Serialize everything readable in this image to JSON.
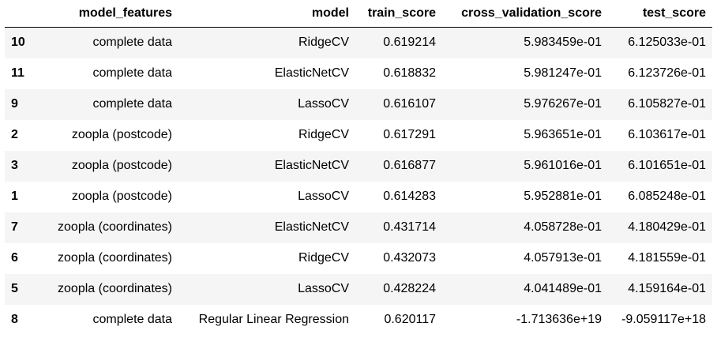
{
  "table": {
    "columns": {
      "index": "",
      "model_features": "model_features",
      "model": "model",
      "train_score": "train_score",
      "cross_validation_score": "cross_validation_score",
      "test_score": "test_score"
    },
    "rows": [
      {
        "index": "10",
        "model_features": "complete data",
        "model": "RidgeCV",
        "train_score": "0.619214",
        "cross_validation_score": "5.983459e-01",
        "test_score": "6.125033e-01"
      },
      {
        "index": "11",
        "model_features": "complete data",
        "model": "ElasticNetCV",
        "train_score": "0.618832",
        "cross_validation_score": "5.981247e-01",
        "test_score": "6.123726e-01"
      },
      {
        "index": "9",
        "model_features": "complete data",
        "model": "LassoCV",
        "train_score": "0.616107",
        "cross_validation_score": "5.976267e-01",
        "test_score": "6.105827e-01"
      },
      {
        "index": "2",
        "model_features": "zoopla (postcode)",
        "model": "RidgeCV",
        "train_score": "0.617291",
        "cross_validation_score": "5.963651e-01",
        "test_score": "6.103617e-01"
      },
      {
        "index": "3",
        "model_features": "zoopla (postcode)",
        "model": "ElasticNetCV",
        "train_score": "0.616877",
        "cross_validation_score": "5.961016e-01",
        "test_score": "6.101651e-01"
      },
      {
        "index": "1",
        "model_features": "zoopla (postcode)",
        "model": "LassoCV",
        "train_score": "0.614283",
        "cross_validation_score": "5.952881e-01",
        "test_score": "6.085248e-01"
      },
      {
        "index": "7",
        "model_features": "zoopla (coordinates)",
        "model": "ElasticNetCV",
        "train_score": "0.431714",
        "cross_validation_score": "4.058728e-01",
        "test_score": "4.180429e-01"
      },
      {
        "index": "6",
        "model_features": "zoopla (coordinates)",
        "model": "RidgeCV",
        "train_score": "0.432073",
        "cross_validation_score": "4.057913e-01",
        "test_score": "4.181559e-01"
      },
      {
        "index": "5",
        "model_features": "zoopla (coordinates)",
        "model": "LassoCV",
        "train_score": "0.428224",
        "cross_validation_score": "4.041489e-01",
        "test_score": "4.159164e-01"
      },
      {
        "index": "8",
        "model_features": "complete data",
        "model": "Regular Linear Regression",
        "train_score": "0.620117",
        "cross_validation_score": "-1.713636e+19",
        "test_score": "-9.059117e+18"
      }
    ]
  }
}
